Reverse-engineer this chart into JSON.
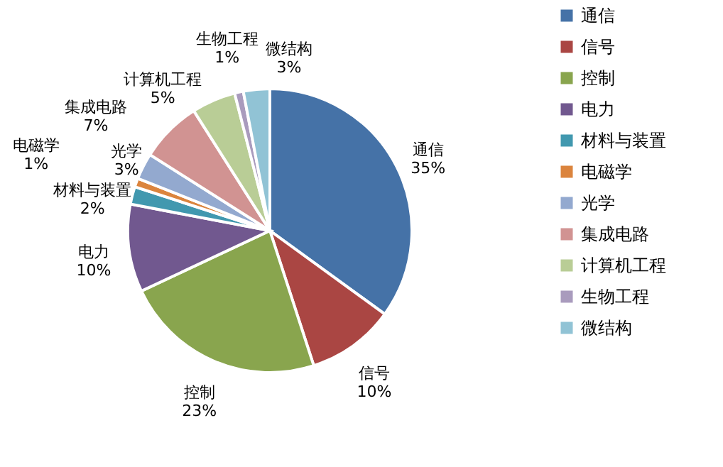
{
  "chart_data": {
    "type": "pie",
    "categories": [
      "通信",
      "信号",
      "控制",
      "电力",
      "材料与装置",
      "电磁学",
      "光学",
      "集成电路",
      "计算机工程",
      "生物工程",
      "微结构"
    ],
    "values": [
      35,
      10,
      23,
      10,
      2,
      1,
      3,
      7,
      5,
      1,
      3
    ],
    "value_labels": [
      "35%",
      "10%",
      "23%",
      "10%",
      "2%",
      "1%",
      "3%",
      "7%",
      "5%",
      "1%",
      "3%"
    ],
    "colors": [
      "#4572a7",
      "#aa4643",
      "#89a54e",
      "#71588f",
      "#4198af",
      "#db843d",
      "#93a9cf",
      "#d19392",
      "#b9cd96",
      "#a99bbd",
      "#91c3d5"
    ],
    "legend": "right"
  }
}
